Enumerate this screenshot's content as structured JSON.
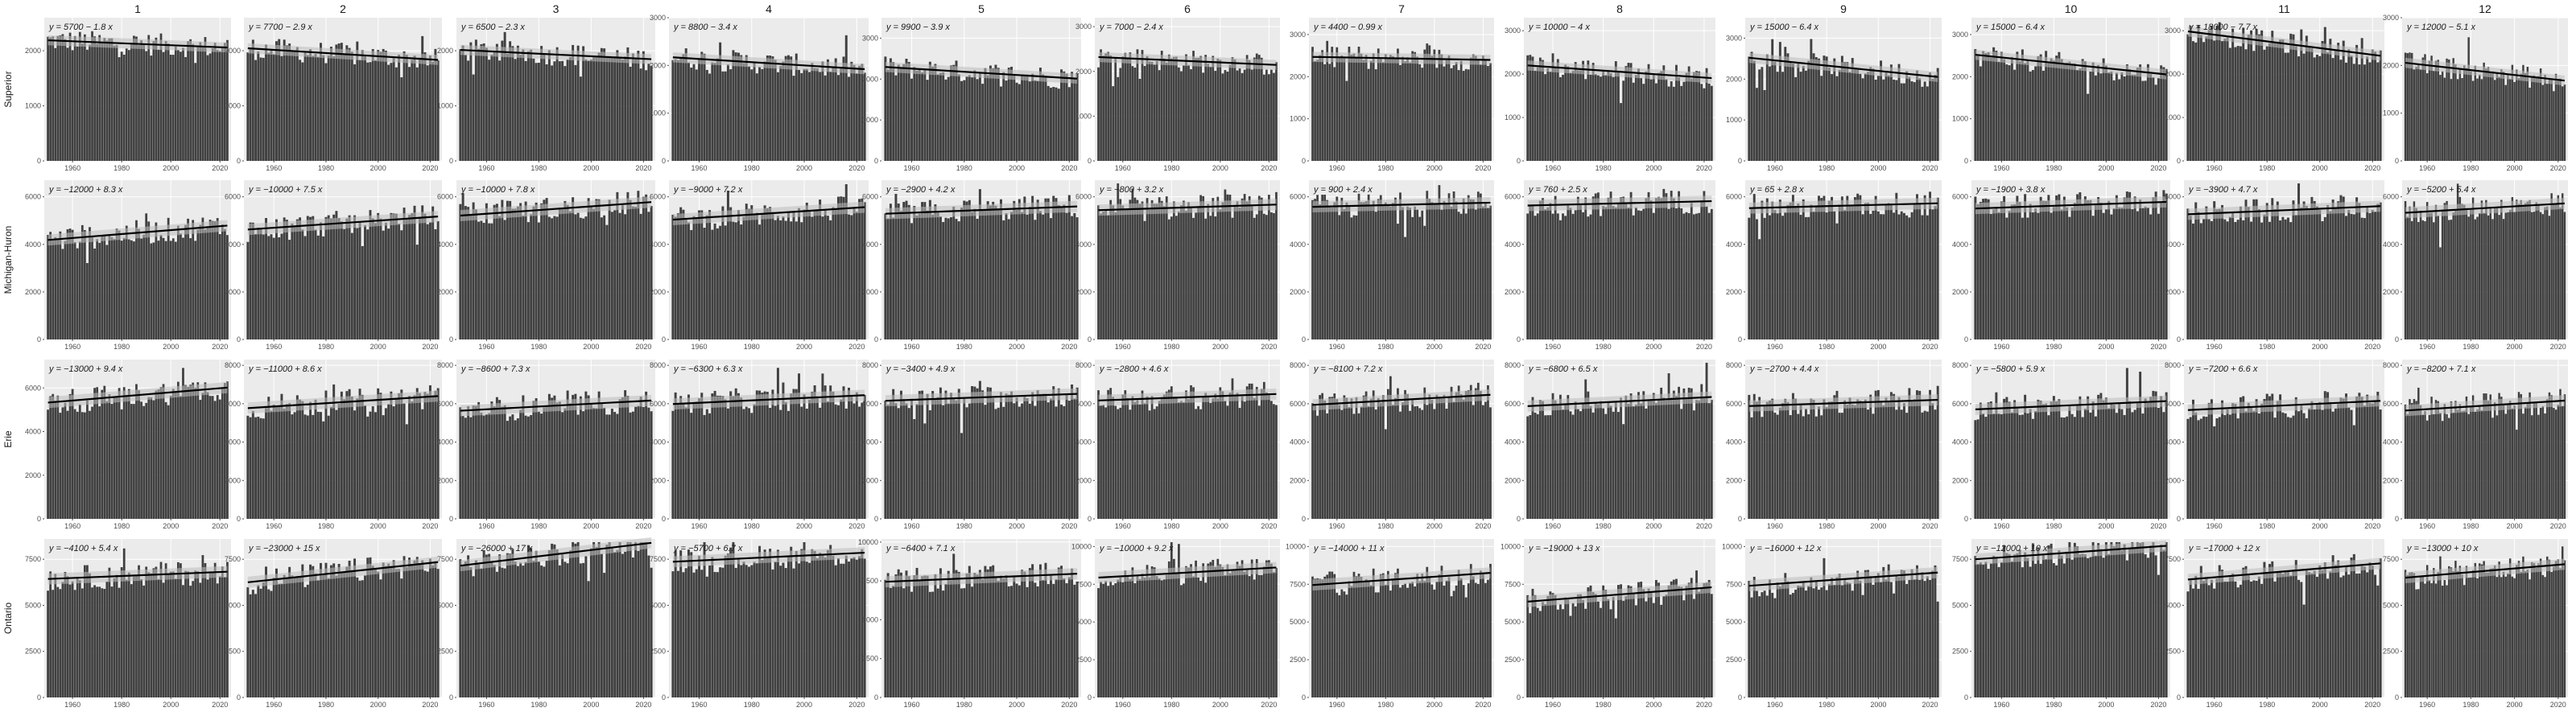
{
  "chart_data": {
    "type": "bar",
    "description_free": true,
    "x_range": [
      1950,
      2023
    ],
    "x_ticks": [
      1960,
      1980,
      2000,
      2020
    ],
    "columns": [
      "1",
      "2",
      "3",
      "4",
      "5",
      "6",
      "7",
      "8",
      "9",
      "10",
      "11",
      "12"
    ],
    "rows": [
      "Superior",
      "Michigan-Huron",
      "Erie",
      "Ontario"
    ],
    "colors": {
      "bar": "#404040",
      "panel_bg": "#ebebeb",
      "grid": "#ffffff",
      "trend": "#000000",
      "band": "#bdbdbd"
    },
    "panels": [
      [
        {
          "eq": "y = 5700 − 1.8 x",
          "a": 5700,
          "b": -1.8,
          "ylim": [
            0,
            2600
          ],
          "yticks": [
            0,
            1000,
            2000
          ]
        },
        {
          "eq": "y = 7700 − 2.9 x",
          "a": 7700,
          "b": -2.9,
          "ylim": [
            0,
            2600
          ],
          "yticks": [
            0,
            1000,
            2000
          ]
        },
        {
          "eq": "y = 6500 − 2.3 x",
          "a": 6500,
          "b": -2.3,
          "ylim": [
            0,
            2600
          ],
          "yticks": [
            0,
            1000,
            2000
          ]
        },
        {
          "eq": "y = 8800 − 3.4 x",
          "a": 8800,
          "b": -3.4,
          "ylim": [
            0,
            3000
          ],
          "yticks": [
            0,
            1000,
            2000,
            3000
          ]
        },
        {
          "eq": "y = 9900 − 3.9 x",
          "a": 9900,
          "b": -3.9,
          "ylim": [
            0,
            3500
          ],
          "yticks": [
            0,
            1000,
            2000,
            3000
          ]
        },
        {
          "eq": "y = 7000 − 2.4 x",
          "a": 7000,
          "b": -2.4,
          "ylim": [
            0,
            3200
          ],
          "yticks": [
            0,
            1000,
            2000,
            3000
          ]
        },
        {
          "eq": "y = 4400 − 0.99 x",
          "a": 4400,
          "b": -0.99,
          "ylim": [
            0,
            3400
          ],
          "yticks": [
            0,
            1000,
            2000,
            3000
          ]
        },
        {
          "eq": "y = 10000 − 4 x",
          "a": 10000,
          "b": -4,
          "ylim": [
            0,
            3300
          ],
          "yticks": [
            0,
            1000,
            2000,
            3000
          ]
        },
        {
          "eq": "y = 15000 − 6.4 x",
          "a": 15000,
          "b": -6.4,
          "ylim": [
            0,
            3500
          ],
          "yticks": [
            0,
            1000,
            2000,
            3000
          ]
        },
        {
          "eq": "y = 15000 − 6.4 x",
          "a": 15000,
          "b": -6.4,
          "ylim": [
            0,
            3400
          ],
          "yticks": [
            0,
            1000,
            2000,
            3000
          ]
        },
        {
          "eq": "y = 18000 − 7.7 x",
          "a": 18000,
          "b": -7.7,
          "ylim": [
            0,
            3300
          ],
          "yticks": [
            0,
            1000,
            2000,
            3000
          ]
        },
        {
          "eq": "y = 12000 − 5.1 x",
          "a": 12000,
          "b": -5.1,
          "ylim": [
            0,
            3000
          ],
          "yticks": [
            0,
            1000,
            2000,
            3000
          ]
        }
      ],
      [
        {
          "eq": "y = −12000 + 8.3 x",
          "a": -12000,
          "b": 8.3,
          "ylim": [
            0,
            6700
          ],
          "yticks": [
            0,
            2000,
            4000,
            6000
          ]
        },
        {
          "eq": "y = −10000 + 7.5 x",
          "a": -10000,
          "b": 7.5,
          "ylim": [
            0,
            6700
          ],
          "yticks": [
            0,
            2000,
            4000,
            6000
          ]
        },
        {
          "eq": "y = −10000 + 7.8 x",
          "a": -10000,
          "b": 7.8,
          "ylim": [
            0,
            6700
          ],
          "yticks": [
            0,
            2000,
            4000,
            6000
          ]
        },
        {
          "eq": "y = −9000 + 7.2 x",
          "a": -9000,
          "b": 7.2,
          "ylim": [
            0,
            6700
          ],
          "yticks": [
            0,
            2000,
            4000,
            6000
          ]
        },
        {
          "eq": "y = −2900 + 4.2 x",
          "a": -2900,
          "b": 4.2,
          "ylim": [
            0,
            6700
          ],
          "yticks": [
            0,
            2000,
            4000,
            6000
          ]
        },
        {
          "eq": "y = −800 + 3.2 x",
          "a": -800,
          "b": 3.2,
          "ylim": [
            0,
            6700
          ],
          "yticks": [
            0,
            2000,
            4000,
            6000
          ]
        },
        {
          "eq": "y = 900 + 2.4 x",
          "a": 900,
          "b": 2.4,
          "ylim": [
            0,
            6700
          ],
          "yticks": [
            0,
            2000,
            4000,
            6000
          ]
        },
        {
          "eq": "y = 760 + 2.5 x",
          "a": 760,
          "b": 2.5,
          "ylim": [
            0,
            6700
          ],
          "yticks": [
            0,
            2000,
            4000,
            6000
          ]
        },
        {
          "eq": "y = 65 + 2.8 x",
          "a": 65,
          "b": 2.8,
          "ylim": [
            0,
            6700
          ],
          "yticks": [
            0,
            2000,
            4000,
            6000
          ]
        },
        {
          "eq": "y = −1900 + 3.8 x",
          "a": -1900,
          "b": 3.8,
          "ylim": [
            0,
            6700
          ],
          "yticks": [
            0,
            2000,
            4000,
            6000
          ]
        },
        {
          "eq": "y = −3900 + 4.7 x",
          "a": -3900,
          "b": 4.7,
          "ylim": [
            0,
            6700
          ],
          "yticks": [
            0,
            2000,
            4000,
            6000
          ]
        },
        {
          "eq": "y = −5200 + 5.4 x",
          "a": -5200,
          "b": 5.4,
          "ylim": [
            0,
            6700
          ],
          "yticks": [
            0,
            2000,
            4000,
            6000
          ]
        }
      ],
      [
        {
          "eq": "y = −13000 + 9.4 x",
          "a": -13000,
          "b": 9.4,
          "ylim": [
            0,
            7300
          ],
          "yticks": [
            0,
            2000,
            4000,
            6000
          ]
        },
        {
          "eq": "y = −11000 + 8.6 x",
          "a": -11000,
          "b": 8.6,
          "ylim": [
            0,
            8300
          ],
          "yticks": [
            0,
            2000,
            4000,
            6000,
            8000
          ]
        },
        {
          "eq": "y = −8600 + 7.3 x",
          "a": -8600,
          "b": 7.3,
          "ylim": [
            0,
            8300
          ],
          "yticks": [
            0,
            2000,
            4000,
            6000,
            8000
          ]
        },
        {
          "eq": "y = −6300 + 6.3 x",
          "a": -6300,
          "b": 6.3,
          "ylim": [
            0,
            8300
          ],
          "yticks": [
            0,
            2000,
            4000,
            6000,
            8000
          ]
        },
        {
          "eq": "y = −3400 + 4.9 x",
          "a": -3400,
          "b": 4.9,
          "ylim": [
            0,
            8300
          ],
          "yticks": [
            0,
            2000,
            4000,
            6000,
            8000
          ]
        },
        {
          "eq": "y = −2800 + 4.6 x",
          "a": -2800,
          "b": 4.6,
          "ylim": [
            0,
            8300
          ],
          "yticks": [
            0,
            2000,
            4000,
            6000,
            8000
          ]
        },
        {
          "eq": "y = −8100 + 7.2 x",
          "a": -8100,
          "b": 7.2,
          "ylim": [
            0,
            8300
          ],
          "yticks": [
            0,
            2000,
            4000,
            6000,
            8000
          ]
        },
        {
          "eq": "y = −6800 + 6.5 x",
          "a": -6800,
          "b": 6.5,
          "ylim": [
            0,
            8300
          ],
          "yticks": [
            0,
            2000,
            4000,
            6000,
            8000
          ]
        },
        {
          "eq": "y = −2700 + 4.4 x",
          "a": -2700,
          "b": 4.4,
          "ylim": [
            0,
            8300
          ],
          "yticks": [
            0,
            2000,
            4000,
            6000,
            8000
          ]
        },
        {
          "eq": "y = −5800 + 5.9 x",
          "a": -5800,
          "b": 5.9,
          "ylim": [
            0,
            8300
          ],
          "yticks": [
            0,
            2000,
            4000,
            6000,
            8000
          ]
        },
        {
          "eq": "y = −7200 + 6.6 x",
          "a": -7200,
          "b": 6.6,
          "ylim": [
            0,
            8300
          ],
          "yticks": [
            0,
            2000,
            4000,
            6000,
            8000
          ]
        },
        {
          "eq": "y = −8200 + 7.1 x",
          "a": -8200,
          "b": 7.1,
          "ylim": [
            0,
            8300
          ],
          "yticks": [
            0,
            2000,
            4000,
            6000,
            8000
          ]
        }
      ],
      [
        {
          "eq": "y = −4100 + 5.4 x",
          "a": -4100,
          "b": 5.4,
          "ylim": [
            0,
            8600
          ],
          "yticks": [
            0,
            2500,
            5000,
            7500
          ]
        },
        {
          "eq": "y = −23000 + 15 x",
          "a": -23000,
          "b": 15,
          "ylim": [
            0,
            8600
          ],
          "yticks": [
            0,
            2500,
            5000,
            7500
          ]
        },
        {
          "eq": "y = −26000 + 17 x",
          "a": -26000,
          "b": 17,
          "ylim": [
            0,
            8600
          ],
          "yticks": [
            0,
            2500,
            5000,
            7500
          ]
        },
        {
          "eq": "y = −5700 + 6.7 x",
          "a": -5700,
          "b": 6.7,
          "ylim": [
            0,
            8600
          ],
          "yticks": [
            0,
            2500,
            5000,
            7500
          ]
        },
        {
          "eq": "y = −6400 + 7.1 x",
          "a": -6400,
          "b": 7.1,
          "ylim": [
            0,
            10200
          ],
          "yticks": [
            0,
            2500,
            5000,
            7500,
            10000
          ]
        },
        {
          "eq": "y = −10000 + 9.2 x",
          "a": -10000,
          "b": 9.2,
          "ylim": [
            0,
            10500
          ],
          "yticks": [
            0,
            2500,
            5000,
            7500,
            10000
          ]
        },
        {
          "eq": "y = −14000 + 11 x",
          "a": -14000,
          "b": 11,
          "ylim": [
            0,
            10500
          ],
          "yticks": [
            0,
            2500,
            5000,
            7500,
            10000
          ]
        },
        {
          "eq": "y = −19000 + 13 x",
          "a": -19000,
          "b": 13,
          "ylim": [
            0,
            10500
          ],
          "yticks": [
            0,
            2500,
            5000,
            7500,
            10000
          ]
        },
        {
          "eq": "y = −16000 + 12 x",
          "a": -16000,
          "b": 12,
          "ylim": [
            0,
            10500
          ],
          "yticks": [
            0,
            2500,
            5000,
            7500,
            10000
          ]
        },
        {
          "eq": "y = −12000 + 10 x",
          "a": -12000,
          "b": 10,
          "ylim": [
            0,
            8600
          ],
          "yticks": [
            0,
            2500,
            5000,
            7500
          ]
        },
        {
          "eq": "y = −17000 + 12 x",
          "a": -17000,
          "b": 12,
          "ylim": [
            0,
            8600
          ],
          "yticks": [
            0,
            2500,
            5000,
            7500
          ]
        },
        {
          "eq": "y = −13000 + 10 x",
          "a": -13000,
          "b": 10,
          "ylim": [
            0,
            8600
          ],
          "yticks": [
            0,
            2500,
            5000,
            7500
          ]
        }
      ]
    ]
  }
}
